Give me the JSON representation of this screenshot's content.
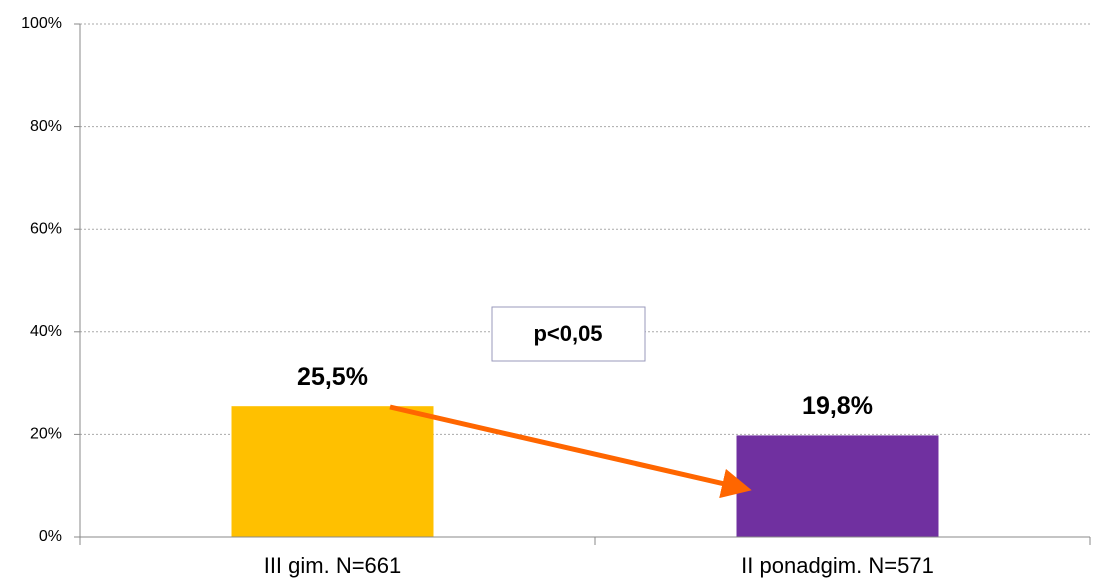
{
  "chart_data": {
    "type": "bar",
    "categories": [
      "III gim. N=661",
      "II ponadgim. N=571"
    ],
    "values": [
      25.5,
      19.8
    ],
    "value_labels": [
      "25,5%",
      "19,8%"
    ],
    "colors": [
      "#ffc000",
      "#7030a0"
    ],
    "ylim": [
      0,
      100
    ],
    "yticks": [
      {
        "value": 0,
        "label": "0%"
      },
      {
        "value": 20,
        "label": "20%"
      },
      {
        "value": 40,
        "label": "40%"
      },
      {
        "value": 60,
        "label": "60%"
      },
      {
        "value": 80,
        "label": "80%"
      },
      {
        "value": 100,
        "label": "100%"
      }
    ],
    "grid": true,
    "annotation": "p<0,05"
  }
}
